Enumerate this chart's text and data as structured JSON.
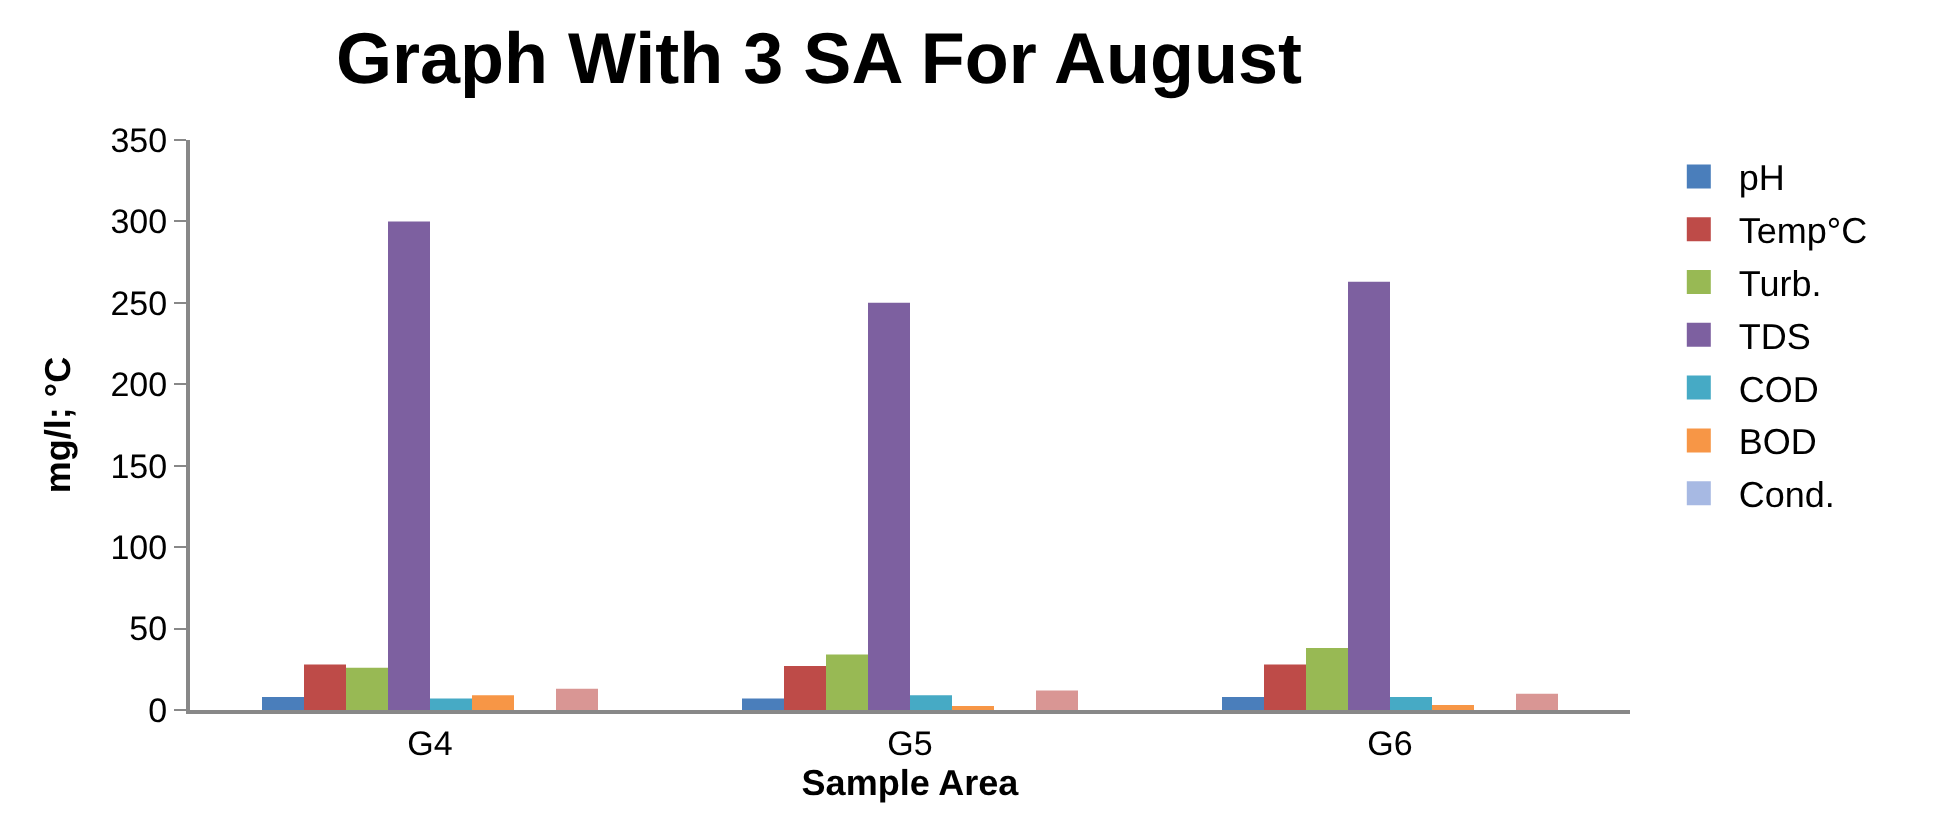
{
  "chart_data": {
    "type": "bar",
    "title": "Graph With 3 SA For August",
    "xlabel": "Sample Area",
    "ylabel": "mg/l; °C",
    "categories": [
      "G4",
      "G5",
      "G6"
    ],
    "series": [
      {
        "name": "pH",
        "color": "#4a7ebb",
        "values": [
          8,
          7,
          8
        ]
      },
      {
        "name": "Temp°C",
        "color": "#be4b48",
        "values": [
          28,
          27,
          28
        ]
      },
      {
        "name": "Turb.",
        "color": "#98b954",
        "values": [
          26,
          34,
          38
        ]
      },
      {
        "name": "TDS",
        "color": "#7d60a0",
        "values": [
          300,
          250,
          263
        ]
      },
      {
        "name": "COD",
        "color": "#46aac5",
        "values": [
          7,
          9,
          8
        ]
      },
      {
        "name": "BOD",
        "color": "#f79646",
        "values": [
          9,
          2,
          3
        ]
      },
      {
        "name": "Cond.",
        "color": "#a7b9e3",
        "values": [
          null,
          null,
          null
        ]
      },
      {
        "color": "#d99694",
        "values": [
          13,
          12,
          10
        ]
      }
    ],
    "ylim": [
      0,
      350
    ],
    "yticks": [
      0,
      50,
      100,
      150,
      200,
      250,
      300,
      350
    ],
    "legend": "right"
  }
}
